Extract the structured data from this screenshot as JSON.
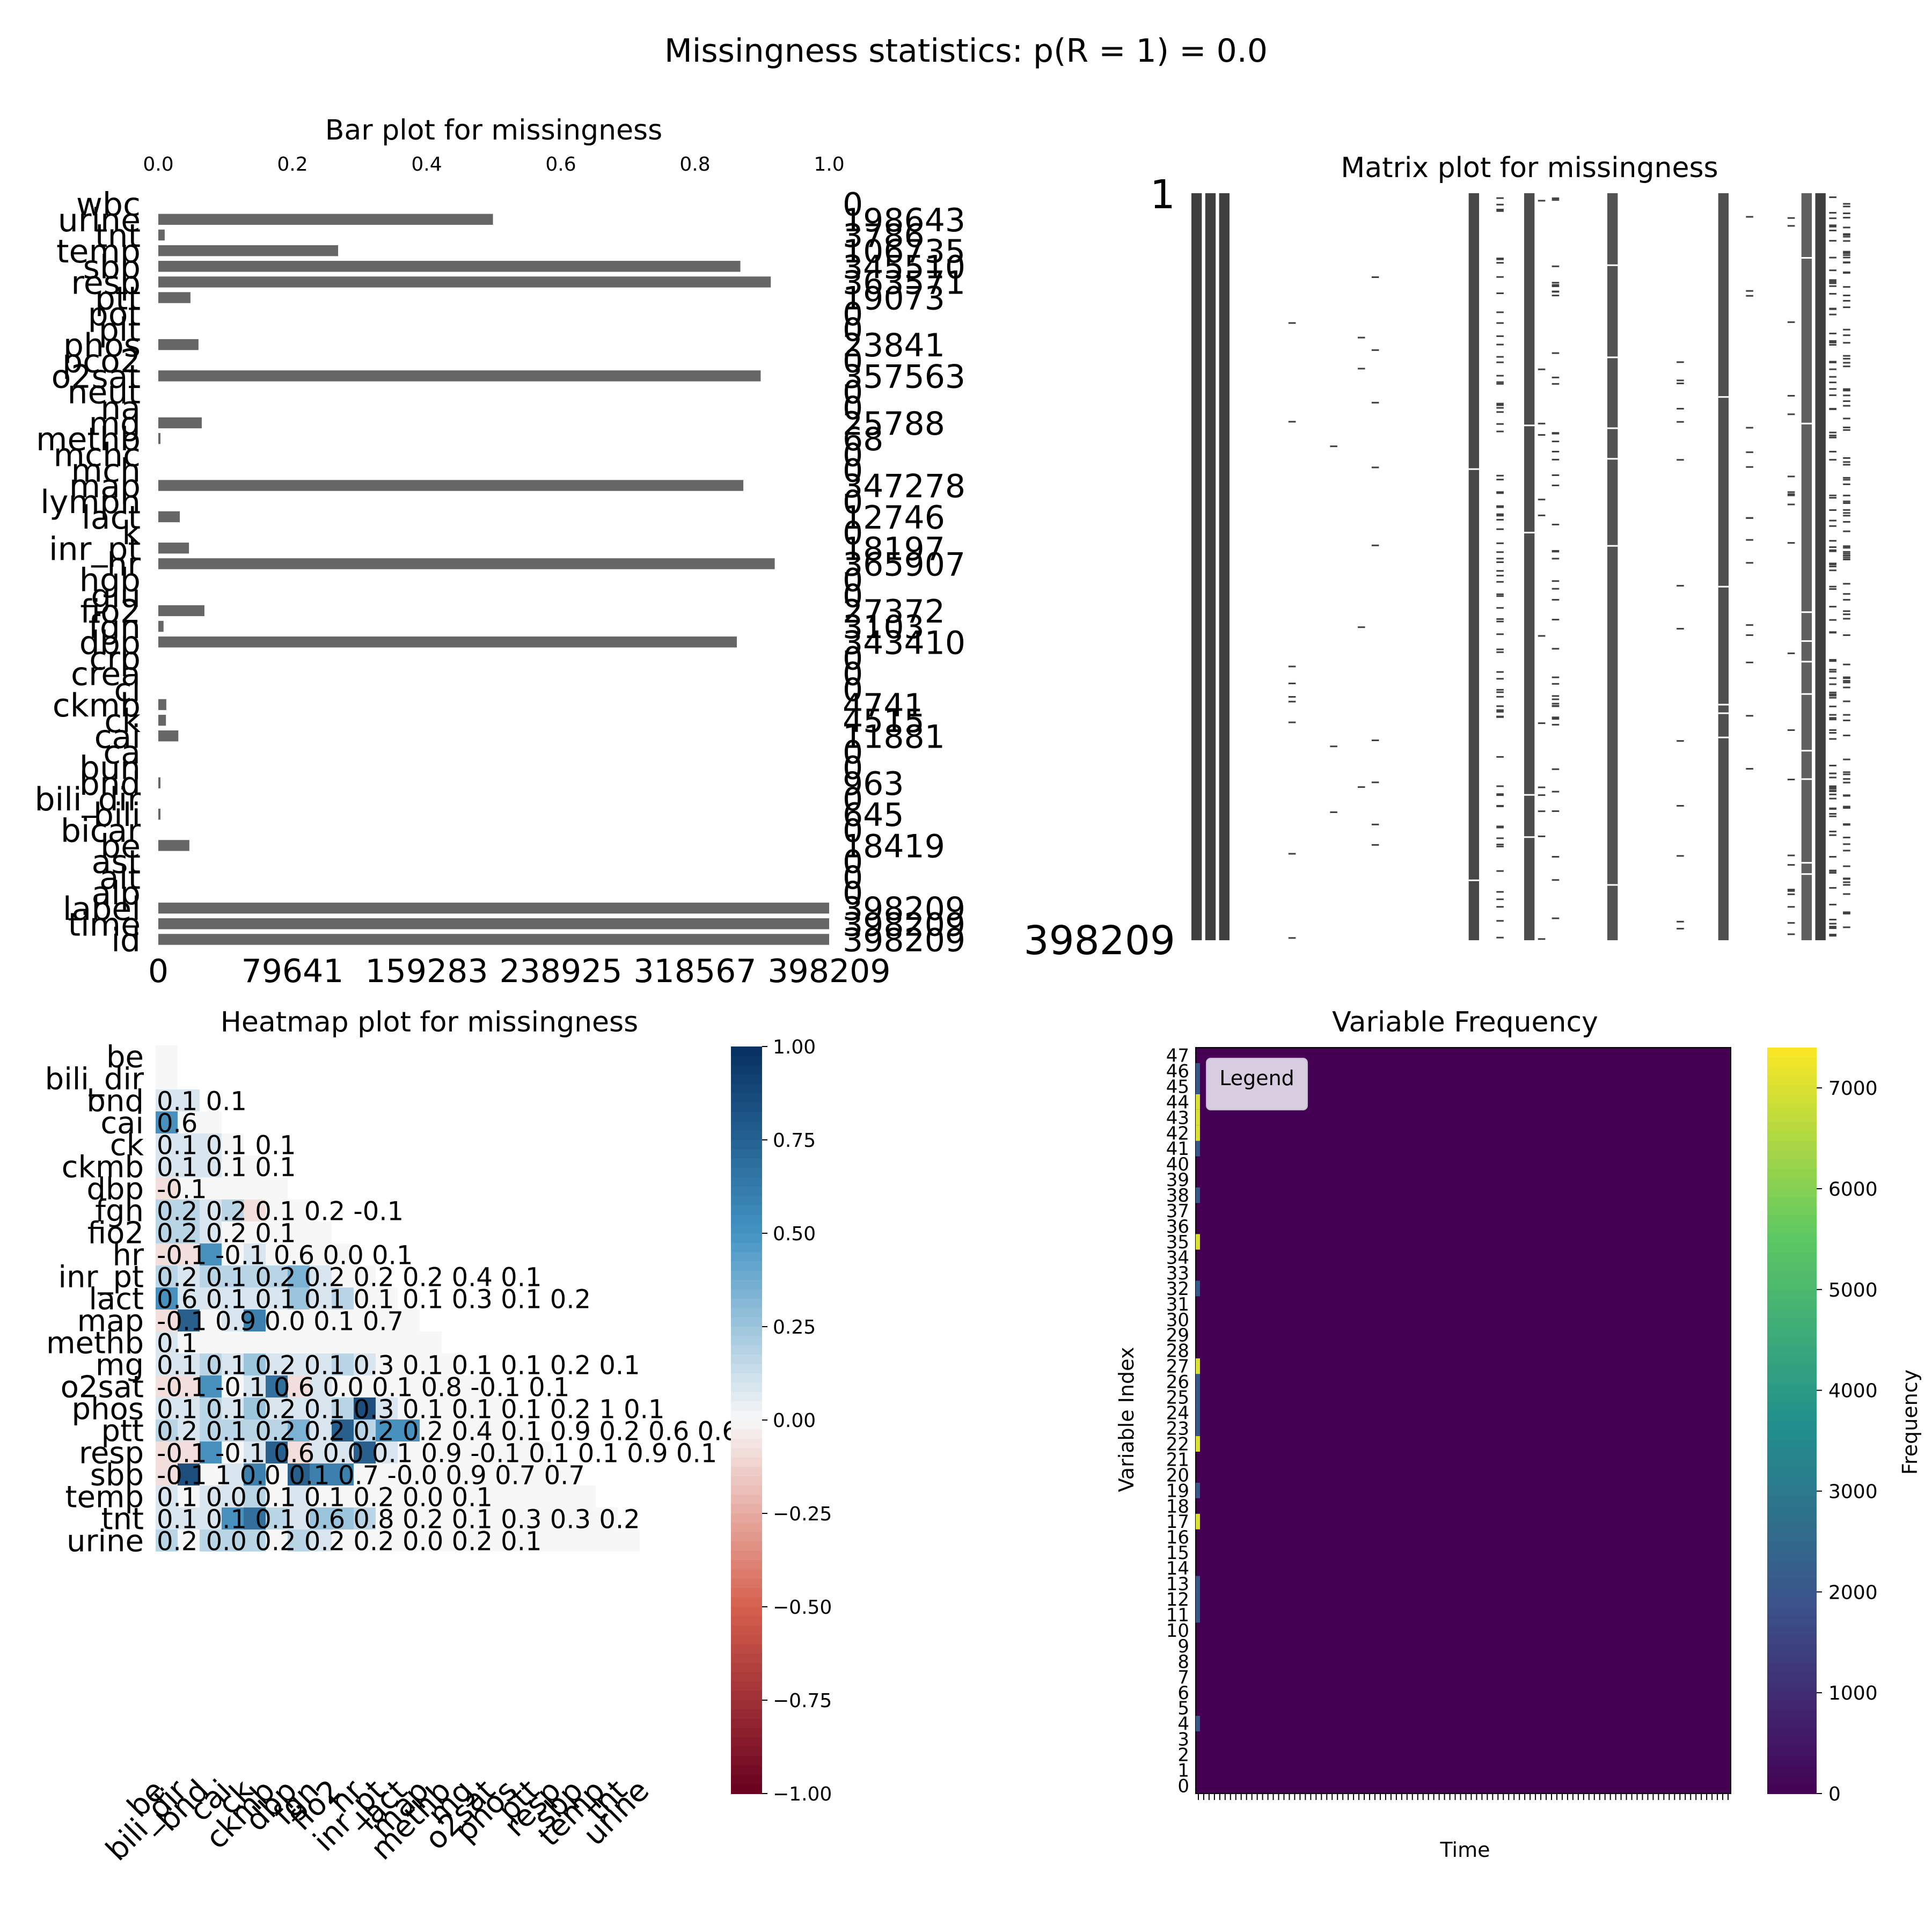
{
  "figure": {
    "suptitle": "Missingness statistics: p(R = 1) = 0.0"
  },
  "chart_data": [
    {
      "type": "bar",
      "orientation": "horizontal",
      "title": "Bar plot for missingness",
      "bar_color": "#666666",
      "categories": [
        "wbc",
        "urine",
        "tnt",
        "temp",
        "sbp",
        "resp",
        "ptt",
        "pot",
        "plt",
        "phos",
        "pco2",
        "o2sat",
        "neut",
        "na",
        "mg",
        "methb",
        "mchc",
        "mch",
        "map",
        "lymph",
        "lact",
        "k",
        "inr_pt",
        "hr",
        "hgb",
        "glu",
        "fio2",
        "fgn",
        "dbp",
        "crp",
        "crea",
        "cl",
        "ckmb",
        "ck",
        "cai",
        "ca",
        "bun",
        "bnd",
        "bili_dir",
        "bili",
        "bicar",
        "be",
        "ast",
        "alt",
        "alp",
        "label",
        "time",
        "id"
      ],
      "values": [
        0,
        198643,
        3786,
        106735,
        345510,
        363571,
        19073,
        0,
        0,
        23841,
        0,
        357563,
        0,
        0,
        25788,
        68,
        0,
        0,
        347278,
        0,
        12746,
        0,
        18197,
        365907,
        0,
        0,
        27372,
        3103,
        343410,
        0,
        0,
        0,
        4741,
        4515,
        11881,
        0,
        0,
        963,
        0,
        645,
        0,
        18419,
        0,
        0,
        0,
        398209,
        398209,
        398209
      ],
      "value_labels": [
        "0",
        "198643",
        "3786",
        "106735",
        "345510",
        "363571",
        "19073",
        "0",
        "0",
        "23841",
        "0",
        "357563",
        "0",
        "0",
        "25788",
        "68",
        "0",
        "0",
        "347278",
        "0",
        "12746",
        "0",
        "18197",
        "365907",
        "0",
        "0",
        "27372",
        "3103",
        "343410",
        "0",
        "0",
        "0",
        "4741",
        "4515",
        "11881",
        "0",
        "0",
        "963",
        "0",
        "645",
        "0",
        "18419",
        "0",
        "0",
        "0",
        "398209",
        "398209",
        "398209"
      ],
      "bottom_ticks": [
        "0",
        "79641",
        "159283",
        "238925",
        "318567",
        "398209"
      ],
      "xlim": [
        0,
        398209
      ],
      "top_ticks": [
        "0.0",
        "0.2",
        "0.4",
        "0.6",
        "0.8",
        "1.0"
      ],
      "top_xlim": [
        0,
        1.0
      ]
    },
    {
      "type": "matrix",
      "title": "Matrix plot for missingness",
      "row_labels": {
        "top": "1",
        "bottom": "398209"
      },
      "fill_color": "#404040",
      "columns_fraction_present": [
        1,
        1,
        1,
        0,
        0,
        0,
        0,
        0.04,
        0,
        0,
        0.01,
        0,
        0.02,
        0.04,
        0,
        0,
        0,
        0,
        0,
        0,
        0.96,
        0,
        0.36,
        0,
        0.93,
        0.06,
        0.2,
        0,
        0,
        0,
        0.9,
        0,
        0,
        0,
        0,
        0.06,
        0,
        0,
        0.92,
        0,
        0.07,
        0,
        0,
        0.1,
        0.84,
        0.99,
        0.47,
        0.46
      ]
    },
    {
      "type": "heatmap",
      "title": "Heatmap plot for missingness",
      "labels": [
        "be",
        "bili_dir",
        "bnd",
        "cai",
        "ck",
        "ckmb",
        "dbp",
        "fgn",
        "fio2",
        "hr",
        "inr_pt",
        "lact",
        "map",
        "methb",
        "mg",
        "o2sat",
        "phos",
        "ptt",
        "resp",
        "sbp",
        "temp",
        "tnt",
        "urine"
      ],
      "row_annotations": [
        "",
        "",
        "0.1 0.1",
        "0.6",
        "0.1 0.1 0.1",
        "0.1 0.1 0.1",
        "-0.1",
        "0.2 0.2 0.1 0.2 -0.1",
        "0.2 0.2 0.1",
        "-0.1 -0.1 0.6 0.0 0.1",
        "0.2 0.1 0.2 0.2 0.2 0.2 0.4 0.1",
        "0.6 0.1 0.1 0.1 0.1 0.1 0.3 0.1 0.2",
        "-0.1 0.9 0.0 0.1 0.7",
        "0.1",
        "0.1 0.1 0.2 0.1 0.3 0.1 0.1 0.1 0.2 0.1",
        "-0.1 -0.1 0.6 0.0 0.1 0.8 -0.1 0.1",
        "0.1 0.1 0.2 0.1 0.3 0.1 0.1 0.1 0.2 1 0.1",
        "0.2 0.1 0.2 0.2 0.2 0.2 0.4 0.1 0.9 0.2 0.6 0.6",
        "-0.1 -0.1 0.6 0.0 0.1 0.9 -0.1 0.1 0.1 0.9 0.1",
        "-0.1 1 0.0 0.1 0.7 -0.0 0.9 0.7 0.7",
        "0.1 0.0 0.1 0.1 0.2 0.0 0.1",
        "0.1 0.1 0.1 0.6 0.8 0.2 0.1 0.3 0.3 0.2",
        "0.2 0.0 0.2 0.2 0.2 0.0 0.2 0.1"
      ],
      "colorbar_ticks": [
        "1.00",
        "0.75",
        "0.50",
        "0.25",
        "0.00",
        "−0.25",
        "−0.50",
        "−0.75",
        "−1.00"
      ],
      "vlim": [
        -1.0,
        1.0
      ],
      "colormap": "RdBu"
    },
    {
      "type": "heatmap",
      "title": "Variable Frequency",
      "xlabel": "Time",
      "ylabel": "Variable Index",
      "y_ticks": [
        "0",
        "1",
        "2",
        "3",
        "4",
        "5",
        "6",
        "7",
        "8",
        "9",
        "10",
        "11",
        "12",
        "13",
        "14",
        "15",
        "16",
        "17",
        "18",
        "19",
        "20",
        "21",
        "22",
        "23",
        "24",
        "25",
        "26",
        "27",
        "28",
        "29",
        "30",
        "31",
        "32",
        "33",
        "34",
        "35",
        "36",
        "37",
        "38",
        "39",
        "40",
        "41",
        "42",
        "43",
        "44",
        "45",
        "46",
        "47"
      ],
      "legend_label": "Legend",
      "colorbar_label": "Frequency",
      "colorbar_ticks": [
        "0",
        "1000",
        "2000",
        "3000",
        "4000",
        "5000",
        "6000",
        "7000"
      ],
      "vlim": [
        0,
        7400
      ],
      "colormap": "viridis",
      "first_column_values": [
        0,
        0,
        0,
        0,
        2000,
        0,
        0,
        0,
        0,
        0,
        0,
        2000,
        2000,
        2000,
        0,
        0,
        0,
        7000,
        0,
        2000,
        0,
        0,
        7000,
        2000,
        2000,
        2000,
        2000,
        7000,
        0,
        0,
        0,
        0,
        2000,
        0,
        0,
        7000,
        0,
        0,
        2000,
        0,
        0,
        2000,
        7000,
        7000,
        7000,
        2000,
        2000,
        0
      ]
    }
  ]
}
